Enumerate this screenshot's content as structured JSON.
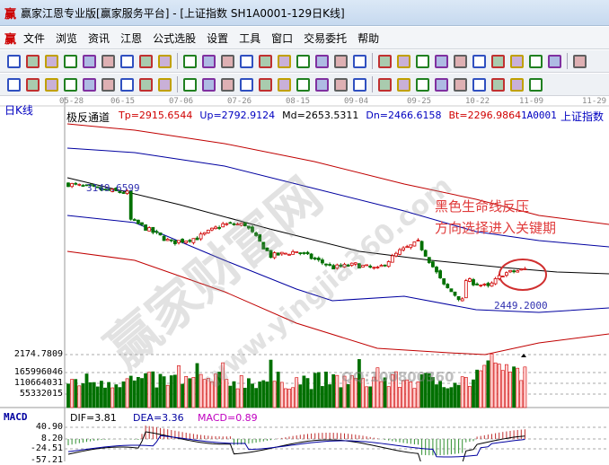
{
  "window": {
    "title": "赢家江恩专业版[赢家服务平台] - [上证指数  SH1A0001-129日K线]",
    "logo": "赢"
  },
  "menu": [
    "文件",
    "浏览",
    "资讯",
    "江恩",
    "公式选股",
    "设置",
    "工具",
    "窗口",
    "交易委托",
    "帮助"
  ],
  "toolbar1": [
    "day-period-icon",
    "dropdown-icon",
    "window-icon",
    "notes-icon",
    "chart-a-icon",
    "chart-b-icon",
    "bar-icon",
    "dropdown-icon",
    "formula-icon",
    "color-chart-icon",
    "first-icon",
    "last-icon",
    "left-icon",
    "right-icon",
    "left-arrow-diamond-icon",
    "right-arrow-diamond-icon",
    "expand-icon",
    "shrink-icon",
    "up-diamond-icon",
    "down-diamond-icon",
    "hand-icon",
    "crosshair-icon",
    "draw-icon",
    "section-icon",
    "combo-icon",
    "calendar-icon",
    "calculator-icon",
    "report-icon",
    "save-icon",
    "network-icon"
  ],
  "toolbar2": [
    "pen-icon",
    "grid-icon",
    "gold-grid-icon",
    "gold-grid2-icon",
    "cycle-icon",
    "spiral-icon",
    "brush-icon",
    "circle-icon",
    "lines-icon",
    "n2-icon",
    "angle-icon",
    "target-icon",
    "star-icon",
    "box-icon",
    "parallel-icon",
    "gann-icon",
    "win-icon",
    "ruler-icon",
    "range-icon",
    "square-icon",
    "fan-icon",
    "box-fan-icon",
    "fan2-icon",
    "angle2-icon",
    "wave-icon",
    "grid2-icon",
    "grid3-icon",
    "multi-line-icon"
  ],
  "chart": {
    "period_label": "日K线",
    "dates": [
      "05-28",
      "06-15",
      "07-06",
      "07-26",
      "08-15",
      "09-04",
      "09-25",
      "10-22",
      "11-09",
      "11-29"
    ],
    "indicator_name": "极反通道",
    "indicators": [
      {
        "text": "Tp=2915.6544",
        "color": "#d00000"
      },
      {
        "text": "Up=2792.9124",
        "color": "#0000c0"
      },
      {
        "text": "Md=2653.5311",
        "color": "#000000"
      },
      {
        "text": "Dn=2466.6158",
        "color": "#0000c0"
      },
      {
        "text": "Bt=2296.9864",
        "color": "#d00000"
      }
    ],
    "code": "1A0001",
    "name": "上证指数",
    "high_label": "3149.6599",
    "low_label": "2449.2000",
    "annotation": [
      "黑色生命线反压",
      "方向选择进入关键期"
    ],
    "watermark": "赢家财富网",
    "watermark_url": "www.yingjia360.com",
    "qq": "QQ:100800360",
    "volume_axis": [
      "2174.7809",
      "165996046",
      "110664031",
      "55332015"
    ],
    "macd": {
      "label": "MACD",
      "dif": "DIF=3.81",
      "dea": "DEA=3.36",
      "macd": "MACD=0.89",
      "axis": [
        "40.90",
        "8.20",
        "-24.51",
        "-57.21"
      ]
    },
    "colors": {
      "up": "#d00000",
      "down": "#007000",
      "band_outer": "#c00000",
      "band_inner": "#0000a0",
      "mid": "#000000"
    }
  },
  "chart_data": {
    "type": "candlestick",
    "candles": 129,
    "close_keypoints": [
      [
        0,
        3176
      ],
      [
        10,
        3139
      ],
      [
        16,
        3123
      ],
      [
        17,
        2965
      ],
      [
        28,
        2833
      ],
      [
        35,
        2860
      ],
      [
        42,
        2939
      ],
      [
        48,
        2939
      ],
      [
        50,
        2886
      ],
      [
        55,
        2754
      ],
      [
        62,
        2781
      ],
      [
        72,
        2686
      ],
      [
        78,
        2702
      ],
      [
        84,
        2675
      ],
      [
        90,
        2781
      ],
      [
        95,
        2833
      ],
      [
        98,
        2728
      ],
      [
        102,
        2580
      ],
      [
        107,
        2491
      ],
      [
        108,
        2612
      ],
      [
        114,
        2570
      ],
      [
        118,
        2649
      ],
      [
        124,
        2675
      ]
    ],
    "high": 3149.6599,
    "low": 2449.2
  }
}
